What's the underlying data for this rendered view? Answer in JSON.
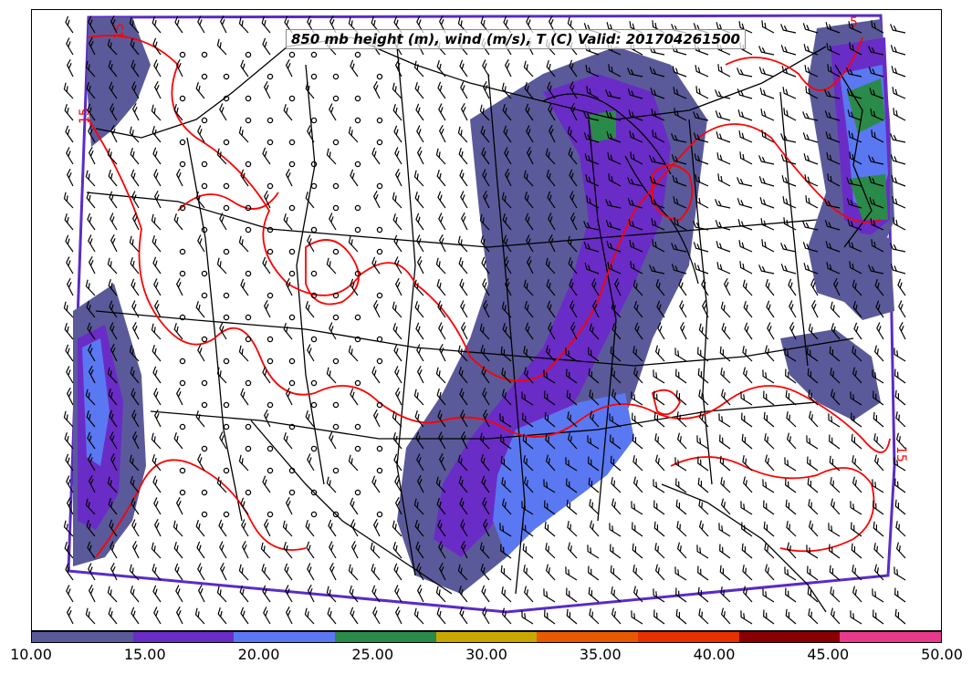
{
  "title": "850 mb height (m), wind (m/s), T (C) Valid: 201704261500",
  "colorbar": {
    "colors": [
      "#5a5a9a",
      "#6a2cc6",
      "#5a78f2",
      "#2a8a4a",
      "#c8a800",
      "#e85a00",
      "#e83000",
      "#8a0000",
      "#e83a8a"
    ],
    "tick_labels": [
      "10.00",
      "15.00",
      "20.00",
      "25.00",
      "30.00",
      "35.00",
      "40.00",
      "45.00",
      "50.00"
    ]
  },
  "map": {
    "contour_color": "#ff0000",
    "boundary_color": "#000000",
    "contour_labels": [
      "15",
      "15",
      "15",
      "5"
    ]
  }
}
